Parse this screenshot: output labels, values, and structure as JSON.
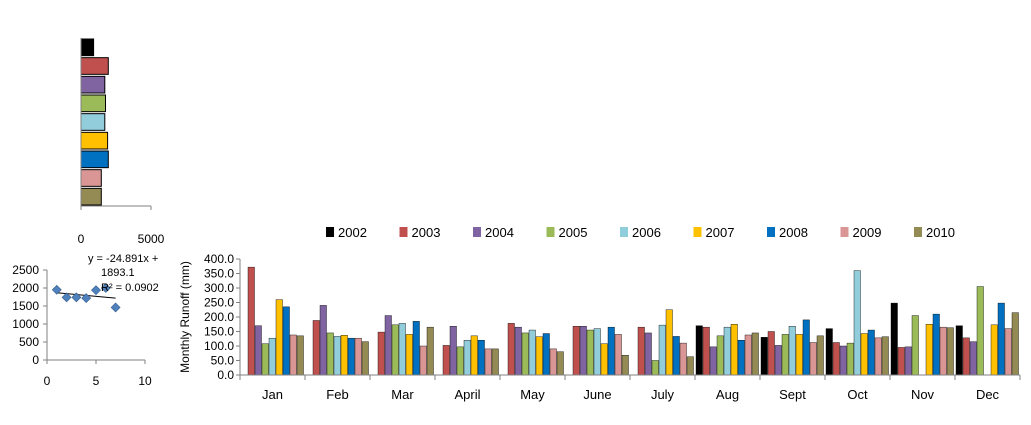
{
  "chart_data": [
    {
      "type": "bar",
      "orientation": "horizontal",
      "categories": [
        "2002",
        "2003",
        "2004",
        "2005",
        "2006",
        "2007",
        "2008",
        "2009",
        "2010"
      ],
      "values": [
        900,
        1950,
        1700,
        1750,
        1700,
        1900,
        1950,
        1450,
        1450
      ],
      "xlim": [
        0,
        5000
      ],
      "xticks": [
        "0",
        "5000"
      ],
      "colors": [
        "#000000",
        "#c0504d",
        "#8064a2",
        "#9bbb59",
        "#92cddc",
        "#ffc000",
        "#0070c0",
        "#d99694",
        "#948a54"
      ]
    },
    {
      "type": "scatter",
      "x": [
        1,
        2,
        3,
        4,
        5,
        6,
        7
      ],
      "y": [
        1950,
        1740,
        1740,
        1720,
        1940,
        2000,
        1460
      ],
      "xlim": [
        0,
        10
      ],
      "ylim": [
        0,
        2500
      ],
      "xticks": [
        "0",
        "5",
        "10"
      ],
      "yticks": [
        "0",
        "500",
        "1000",
        "1500",
        "2000",
        "2500"
      ],
      "trendline": {
        "slope": -24.891,
        "intercept": 1893.1,
        "r2": 0.0902
      },
      "equation_lines": [
        "y = -24.891x +",
        "1893.1",
        "R² = 0.0902"
      ],
      "marker_color": "#4f81bd"
    },
    {
      "type": "bar",
      "categories": [
        "Jan",
        "Feb",
        "Mar",
        "April",
        "May",
        "June",
        "July",
        "Aug",
        "Sept",
        "Oct",
        "Nov",
        "Dec"
      ],
      "ylabel": "Monthly  Runoff (mm)",
      "ylim": [
        0,
        400
      ],
      "yticks": [
        "0.0",
        "50.0",
        "100.0",
        "150.0",
        "200.0",
        "250.0",
        "300.0",
        "350.0",
        "400.0"
      ],
      "legend_position": "top",
      "series": [
        {
          "name": "2002",
          "color": "#000000",
          "values": [
            0,
            0,
            0,
            0,
            0,
            0,
            0,
            170,
            130,
            160,
            248,
            170
          ]
        },
        {
          "name": "2003",
          "color": "#c0504d",
          "values": [
            372,
            188,
            148,
            102,
            178,
            168,
            165,
            165,
            150,
            112,
            95,
            128
          ]
        },
        {
          "name": "2004",
          "color": "#8064a2",
          "values": [
            170,
            240,
            205,
            168,
            165,
            168,
            145,
            97,
            102,
            100,
            97,
            115
          ]
        },
        {
          "name": "2005",
          "color": "#9bbb59",
          "values": [
            108,
            145,
            173,
            97,
            145,
            155,
            50,
            135,
            140,
            110,
            205,
            305
          ]
        },
        {
          "name": "2006",
          "color": "#92cddc",
          "values": [
            127,
            133,
            178,
            120,
            155,
            160,
            172,
            165,
            168,
            360,
            0,
            0
          ]
        },
        {
          "name": "2007",
          "color": "#ffc000",
          "values": [
            260,
            137,
            140,
            135,
            132,
            108,
            225,
            175,
            140,
            143,
            175,
            173
          ]
        },
        {
          "name": "2008",
          "color": "#0070c0",
          "values": [
            235,
            127,
            185,
            120,
            143,
            165,
            133,
            120,
            190,
            155,
            210,
            248
          ]
        },
        {
          "name": "2009",
          "color": "#d99694",
          "values": [
            138,
            127,
            100,
            90,
            90,
            140,
            110,
            138,
            112,
            128,
            165,
            160
          ]
        },
        {
          "name": "2010",
          "color": "#948a54",
          "values": [
            135,
            115,
            165,
            90,
            80,
            68,
            63,
            145,
            135,
            132,
            163,
            215
          ]
        }
      ]
    }
  ]
}
